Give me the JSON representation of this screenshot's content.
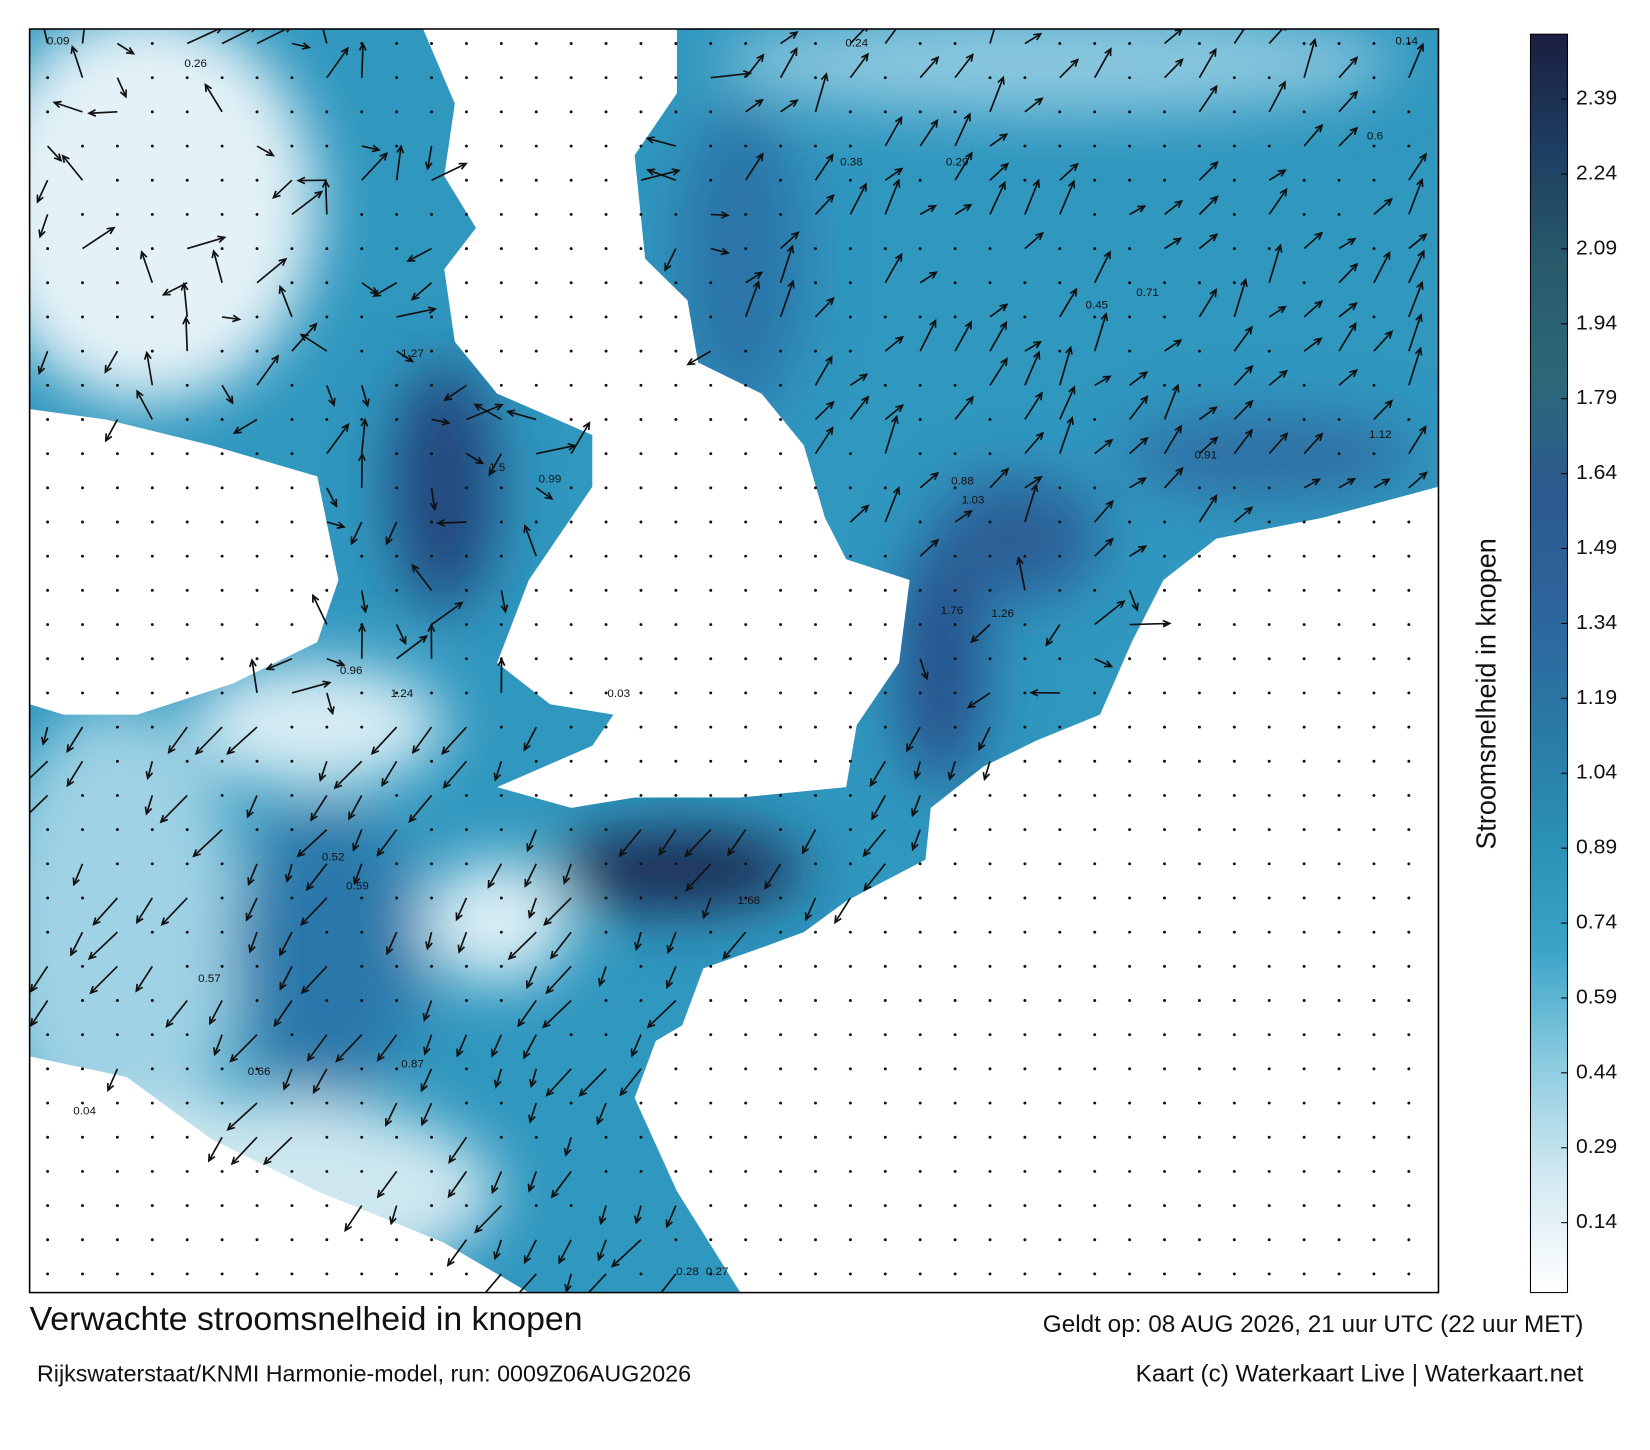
{
  "title": "Verwachte stroomsnelheid in knopen",
  "subtitle": "Rijkswaterstaat/KNMI Harmonie-model, run: 0009Z06AUG2026",
  "valid_time": "Geldt op: 08 AUG 2026, 21 uur UTC (22 uur MET)",
  "credits": "Kaart (c) Waterkaart Live | Waterkaart.net",
  "colorbar": {
    "label": "Stroomsnelheid in knopen",
    "clim": [
      0,
      2.52
    ],
    "ticks": [
      0.14,
      0.29,
      0.44,
      0.59,
      0.74,
      0.89,
      1.04,
      1.19,
      1.34,
      1.49,
      1.64,
      1.79,
      1.94,
      2.09,
      2.24,
      2.39
    ],
    "colors": [
      "#ffffff",
      "#d3e9f1",
      "#8ccbe0",
      "#3aa4c8",
      "#2a8fb5",
      "#2a78a6",
      "#2d649c",
      "#2c5a8f",
      "#2c6878",
      "#285a6a",
      "#1d3e62",
      "#1b1f40"
    ]
  },
  "map": {
    "labels": [
      0.09,
      0.26,
      1.27,
      1.5,
      0.99,
      0.96,
      1.24,
      0.03,
      0.52,
      0.59,
      0.57,
      0.66,
      0.87,
      1.68,
      1.26,
      1.76,
      1.03,
      0.88,
      0.91,
      1.12,
      0.6,
      0.24,
      0.29,
      0.71,
      0.45,
      0.38,
      0.14,
      0.04,
      0.28,
      0.27
    ]
  }
}
